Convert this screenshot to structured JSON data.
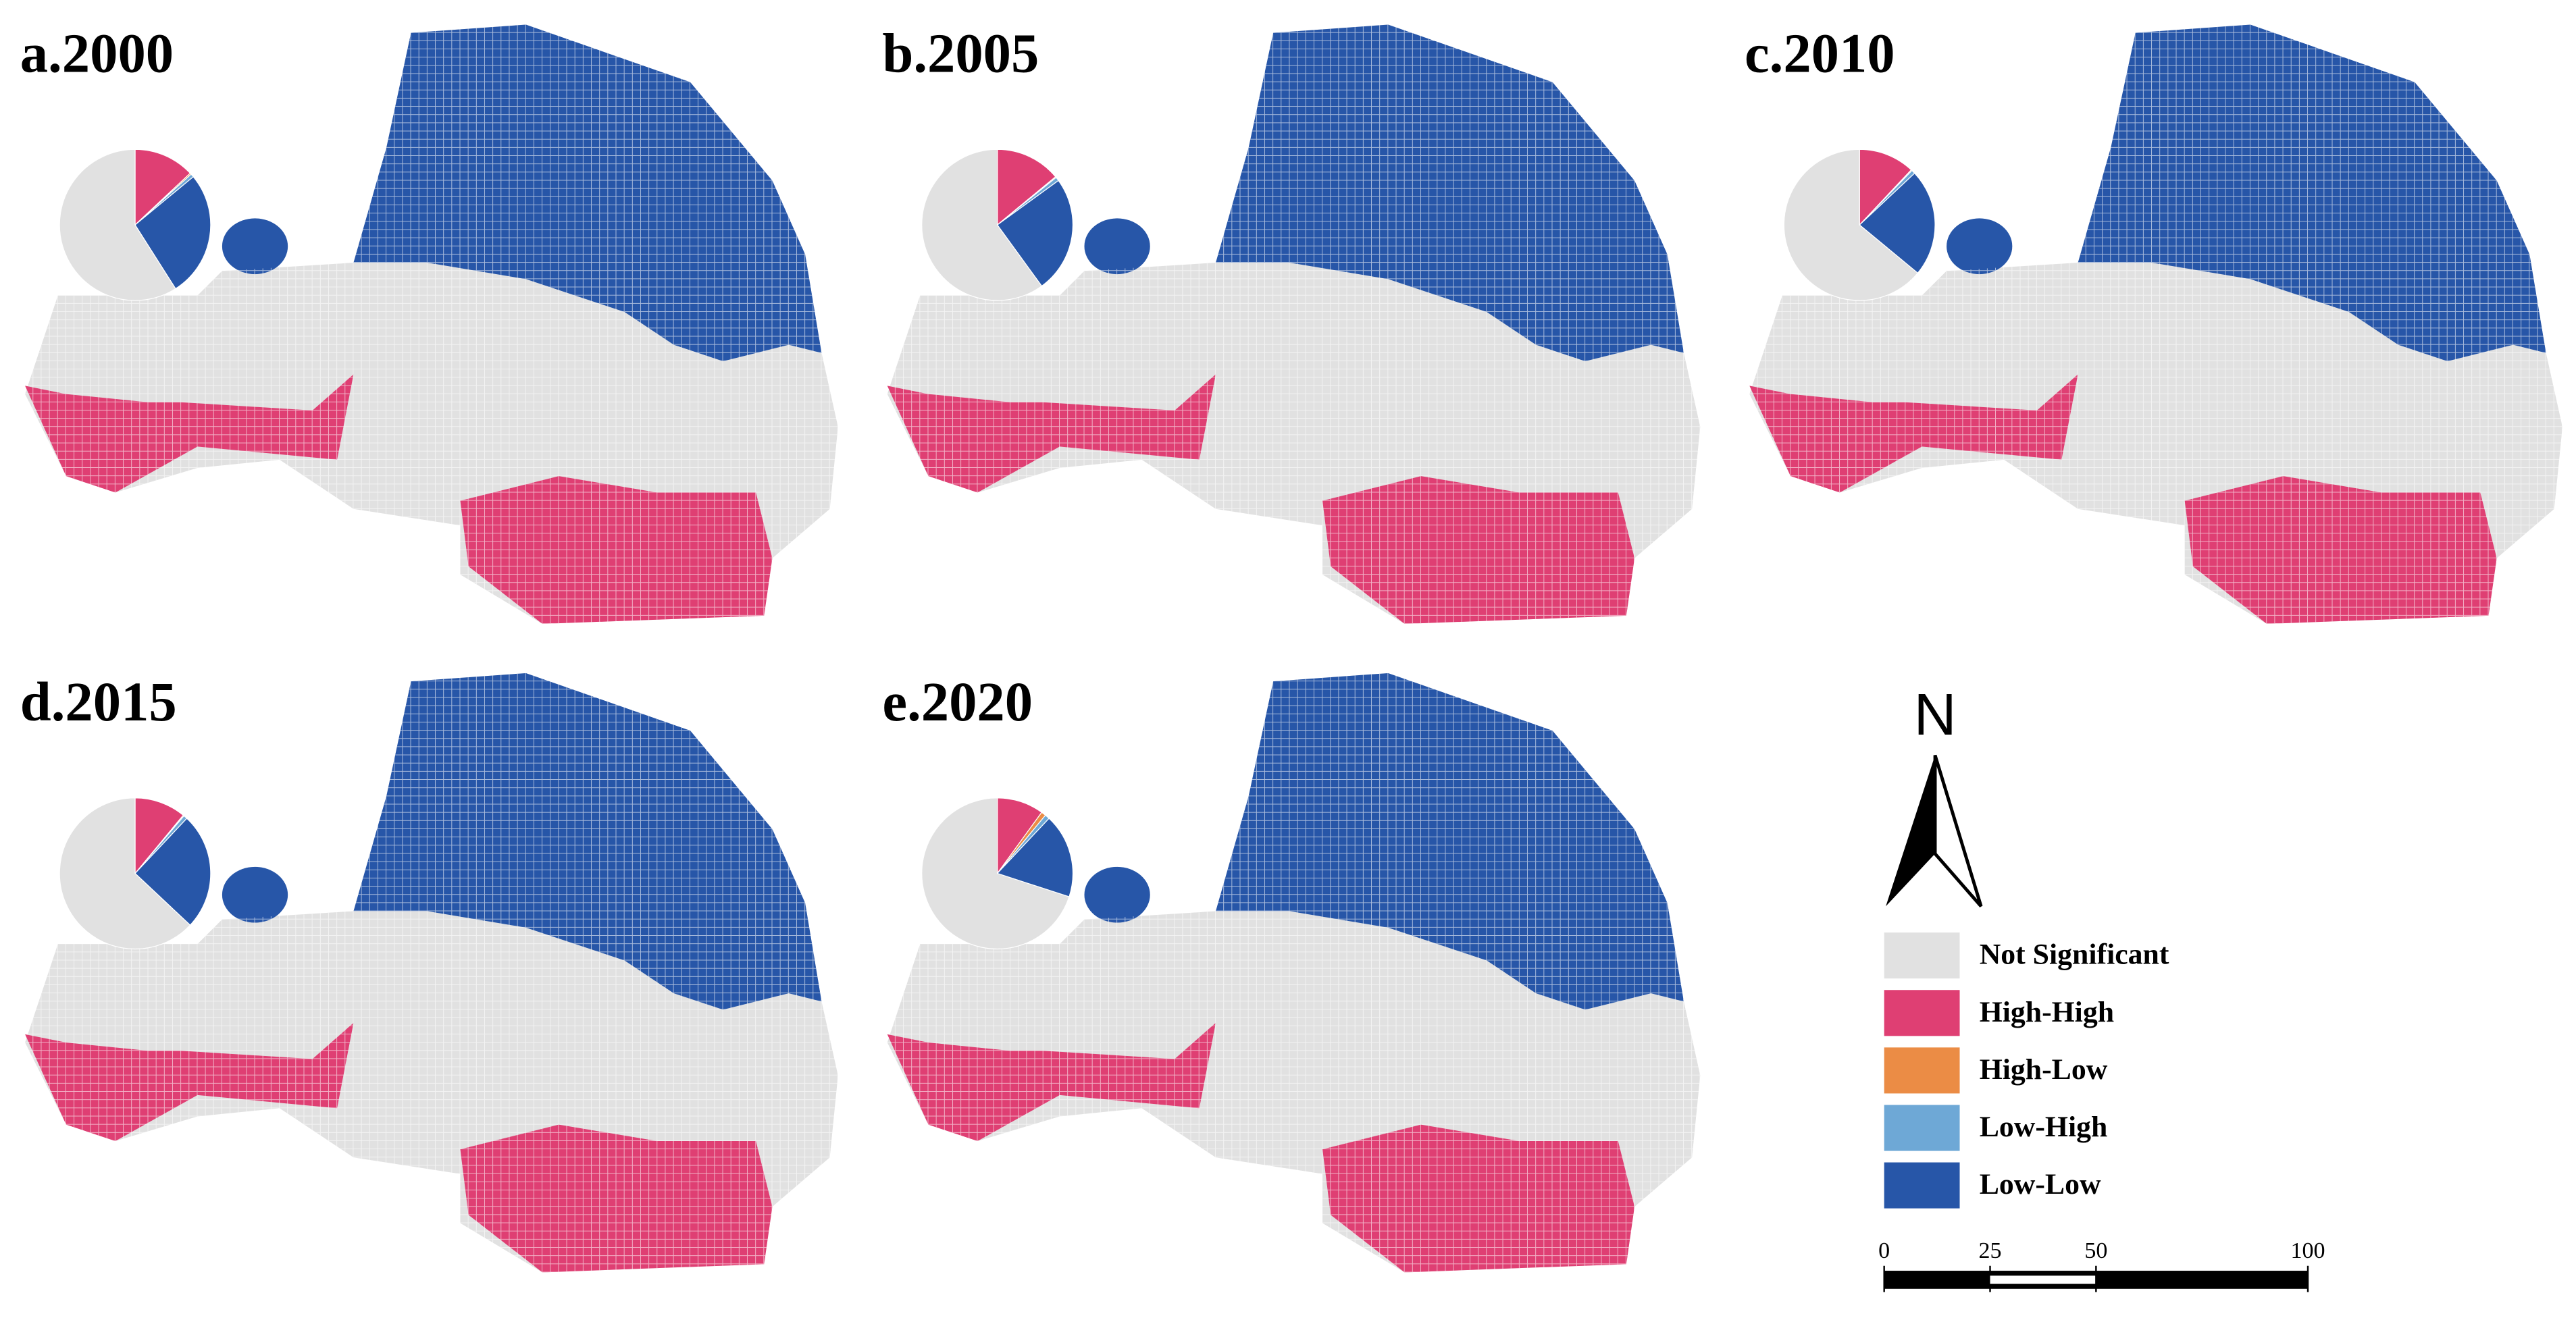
{
  "panels": [
    {
      "label": "a.2000",
      "shares": [
        59,
        13,
        0.3,
        0.7,
        27
      ]
    },
    {
      "label": "b.2005",
      "shares": [
        60,
        14,
        0.2,
        0.8,
        25
      ]
    },
    {
      "label": "c.2010",
      "shares": [
        64,
        12,
        0.2,
        0.8,
        23
      ]
    },
    {
      "label": "d.2015",
      "shares": [
        63,
        11,
        0.2,
        0.8,
        25
      ]
    },
    {
      "label": "e.2020",
      "shares": [
        70,
        10,
        1,
        1,
        18
      ]
    }
  ],
  "legend": [
    {
      "name": "Not Significant",
      "color": "#e1e1e1"
    },
    {
      "name": "High-High",
      "color": "#df3f73"
    },
    {
      "name": "High-Low",
      "color": "#eb8c45"
    },
    {
      "name": "Low-High",
      "color": "#6ea8d6"
    },
    {
      "name": "Low-Low",
      "color": "#2756a8"
    }
  ],
  "north": "N",
  "scale_bar": {
    "lim": [
      0,
      100
    ],
    "ticks": [
      0,
      25,
      50,
      100
    ]
  }
}
